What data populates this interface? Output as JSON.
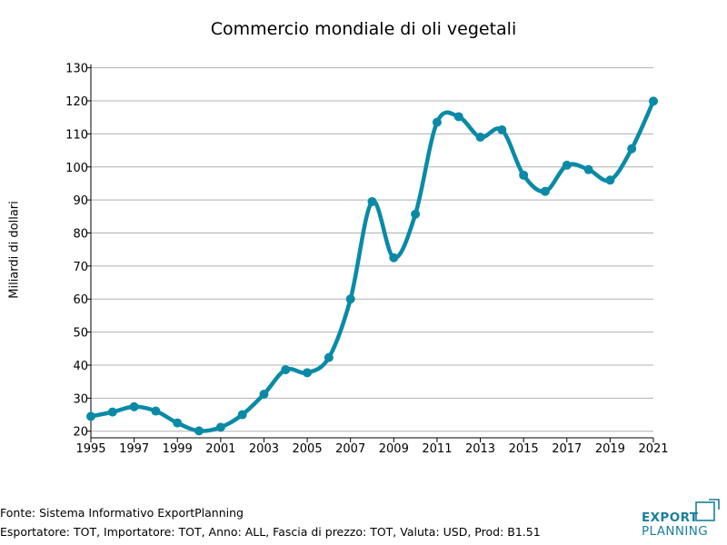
{
  "chart_data": {
    "type": "line",
    "title": "Commercio mondiale di oli vegetali",
    "xlabel": "",
    "ylabel": "Miliardi di dollari",
    "x": [
      1995,
      1996,
      1997,
      1998,
      1999,
      2000,
      2001,
      2002,
      2003,
      2004,
      2005,
      2006,
      2007,
      2008,
      2009,
      2010,
      2011,
      2012,
      2013,
      2014,
      2015,
      2016,
      2017,
      2018,
      2019,
      2020,
      2021
    ],
    "series": [
      {
        "values": [
          24.5,
          25.8,
          27.4,
          26.1,
          22.5,
          20.1,
          21.2,
          25.0,
          31.2,
          38.6,
          37.7,
          42.3,
          60.0,
          89.5,
          72.5,
          85.7,
          113.5,
          115.2,
          109.0,
          111.2,
          97.5,
          92.6,
          100.5,
          99.2,
          96.0,
          105.5,
          119.9
        ]
      }
    ],
    "x_ticks": [
      "1995",
      "1997",
      "1999",
      "2001",
      "2003",
      "2005",
      "2007",
      "2009",
      "2011",
      "2013",
      "2015",
      "2017",
      "2019",
      "2021"
    ],
    "y_ticks": [
      "20",
      "30",
      "40",
      "50",
      "60",
      "70",
      "80",
      "90",
      "100",
      "110",
      "120",
      "130"
    ],
    "xlim": [
      1995,
      2021
    ],
    "ylim": [
      18,
      131
    ],
    "grid": "horizontal",
    "colors": {
      "line": "#0a8aa6",
      "grid": "#b0b0b0",
      "axis": "#000000"
    }
  },
  "footer": {
    "source": "Fonte: Sistema Informativo ExportPlanning",
    "filters": "Esportatore: TOT, Importatore: TOT, Anno: ALL, Fascia di prezzo: TOT, Valuta: USD, Prod: B1.51"
  },
  "logo": {
    "line1": "EXPORT",
    "line2": "PLANNING",
    "color": "#1a7f9b"
  }
}
